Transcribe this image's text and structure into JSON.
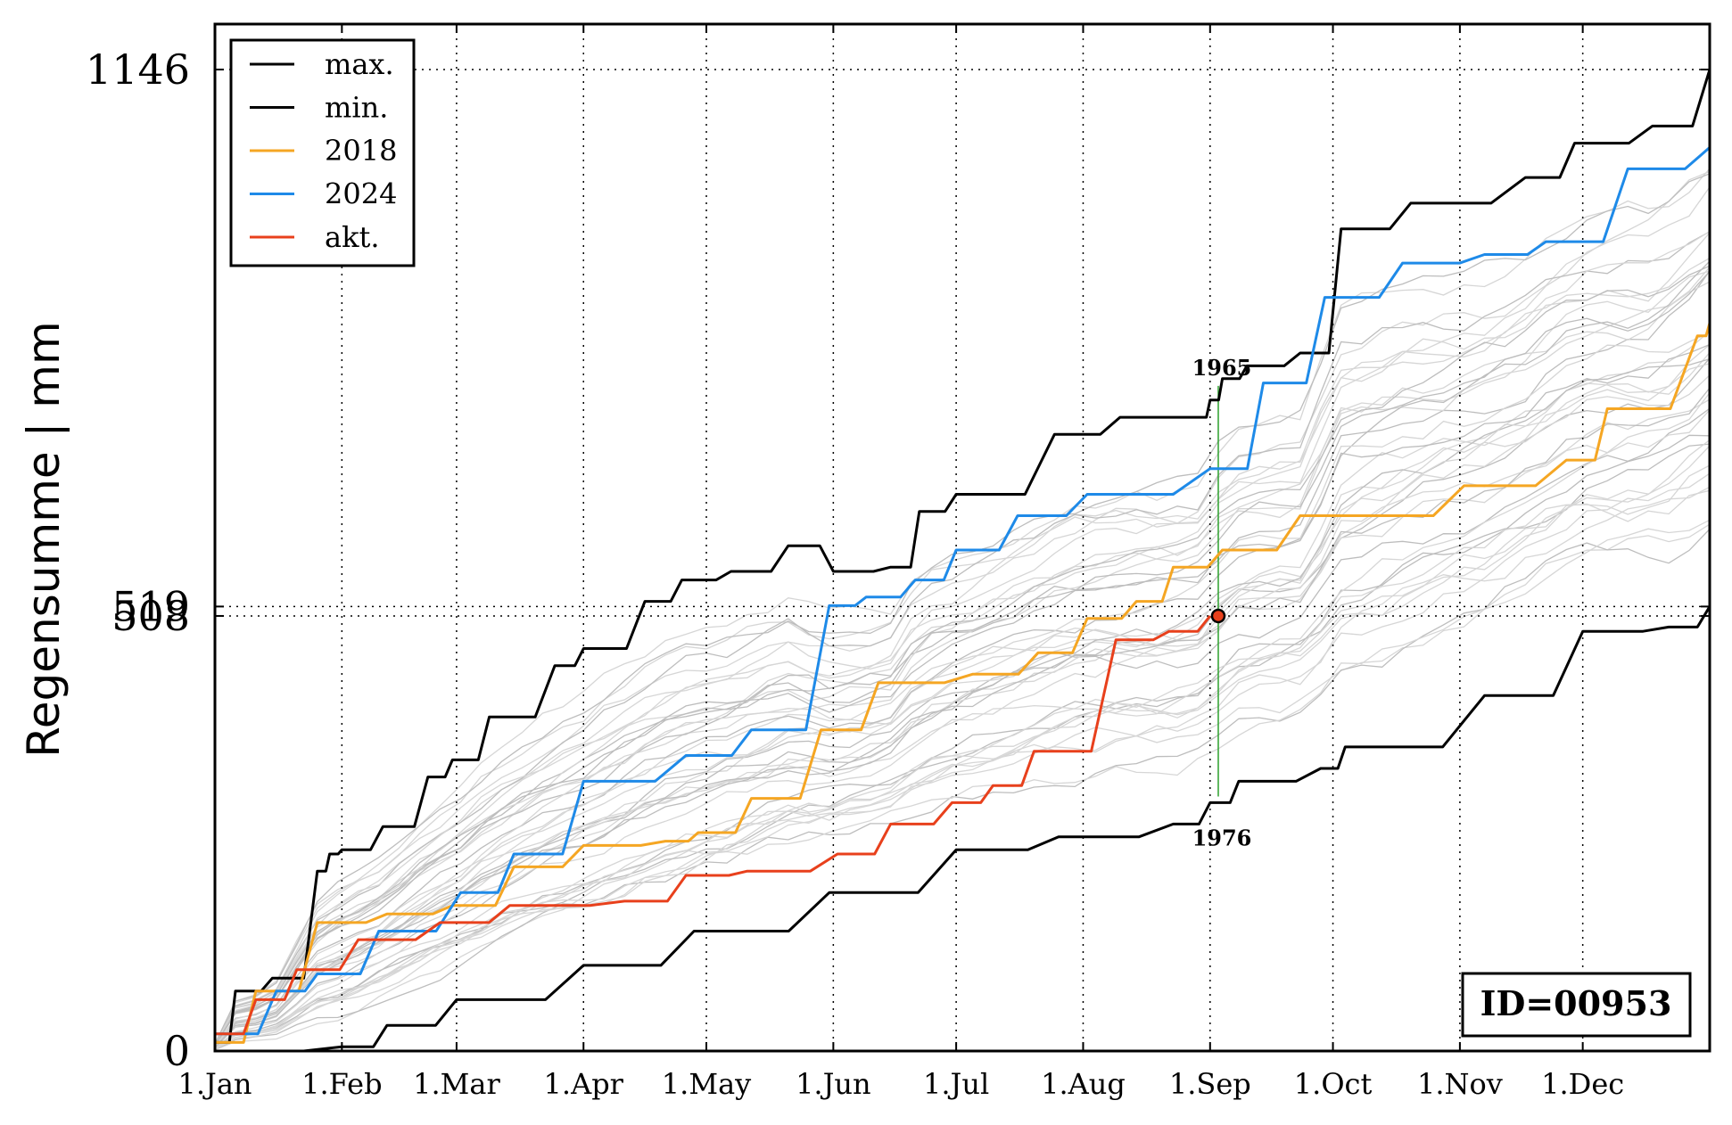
{
  "chart_data": {
    "type": "line",
    "ylabel": "Regensumme | mm",
    "xlim": [
      0,
      365
    ],
    "ylim": [
      0,
      1146
    ],
    "grid": true,
    "legend_position": "top-left",
    "x_ticks": [
      {
        "day": 0,
        "label": "1.Jan"
      },
      {
        "day": 31,
        "label": "1.Feb"
      },
      {
        "day": 59,
        "label": "1.Mar"
      },
      {
        "day": 90,
        "label": "1.Apr"
      },
      {
        "day": 120,
        "label": "1.May"
      },
      {
        "day": 151,
        "label": "1.Jun"
      },
      {
        "day": 181,
        "label": "1.Jul"
      },
      {
        "day": 212,
        "label": "1.Aug"
      },
      {
        "day": 243,
        "label": "1.Sep"
      },
      {
        "day": 273,
        "label": "1.Oct"
      },
      {
        "day": 304,
        "label": "1.Nov"
      },
      {
        "day": 334,
        "label": "1.Dec"
      }
    ],
    "y_ticks": [
      {
        "value": 0,
        "label": "0"
      },
      {
        "value": 508,
        "label": "508"
      },
      {
        "value": 519,
        "label": "519"
      },
      {
        "value": 1146,
        "label": "1146"
      }
    ],
    "series": [
      {
        "name": "max.",
        "color": "#000000",
        "x": [
          0,
          5,
          14,
          25,
          28,
          31,
          41,
          52,
          58,
          67,
          83,
          90,
          105,
          114,
          126,
          140,
          151,
          165,
          172,
          181,
          205,
          221,
          240,
          243,
          246,
          252,
          265,
          275,
          292,
          320,
          332,
          351,
          365
        ],
        "y": [
          10,
          70,
          85,
          210,
          230,
          235,
          262,
          320,
          340,
          390,
          450,
          470,
          525,
          550,
          560,
          590,
          560,
          565,
          630,
          650,
          720,
          740,
          740,
          760,
          785,
          800,
          815,
          960,
          990,
          1020,
          1060,
          1080,
          1146
        ]
      },
      {
        "name": "min.",
        "color": "#000000",
        "x": [
          0,
          31,
          42,
          59,
          90,
          117,
          150,
          181,
          206,
          234,
          243,
          250,
          270,
          276,
          310,
          334,
          355,
          365
        ],
        "y": [
          0,
          5,
          30,
          60,
          100,
          140,
          185,
          235,
          250,
          265,
          290,
          315,
          330,
          355,
          415,
          490,
          495,
          519
        ]
      },
      {
        "name": "2018",
        "color": "#f5a623",
        "x": [
          0,
          10,
          25,
          42,
          58,
          73,
          90,
          110,
          118,
          131,
          148,
          162,
          185,
          201,
          213,
          225,
          234,
          246,
          265,
          280,
          305,
          330,
          340,
          362,
          365
        ],
        "y": [
          10,
          70,
          150,
          160,
          170,
          215,
          240,
          245,
          255,
          295,
          375,
          430,
          440,
          465,
          505,
          525,
          565,
          585,
          625,
          625,
          660,
          690,
          750,
          835,
          850
        ]
      },
      {
        "name": "2024",
        "color": "#1e8ae8",
        "x": [
          0,
          15,
          25,
          40,
          60,
          73,
          90,
          115,
          131,
          150,
          159,
          171,
          181,
          196,
          213,
          243,
          256,
          271,
          290,
          310,
          325,
          345,
          365
        ],
        "y": [
          20,
          70,
          90,
          140,
          185,
          230,
          315,
          345,
          375,
          520,
          530,
          550,
          585,
          625,
          650,
          680,
          780,
          880,
          920,
          930,
          945,
          1030,
          1055
        ]
      },
      {
        "name": "akt.",
        "color": "#e8401c",
        "x": [
          0,
          10,
          20,
          35,
          55,
          72,
          100,
          115,
          130,
          152,
          165,
          180,
          190,
          200,
          220,
          233,
          243
        ],
        "y": [
          20,
          60,
          95,
          130,
          150,
          170,
          175,
          205,
          210,
          230,
          265,
          290,
          310,
          350,
          480,
          490,
          508
        ]
      }
    ],
    "current_point": {
      "x": 245,
      "y": 508
    },
    "annotations": [
      {
        "text": "1965",
        "x": 245,
        "y": 760
      },
      {
        "text": "1976",
        "x": 245,
        "y": 290
      }
    ],
    "id_label": "ID=00953"
  }
}
